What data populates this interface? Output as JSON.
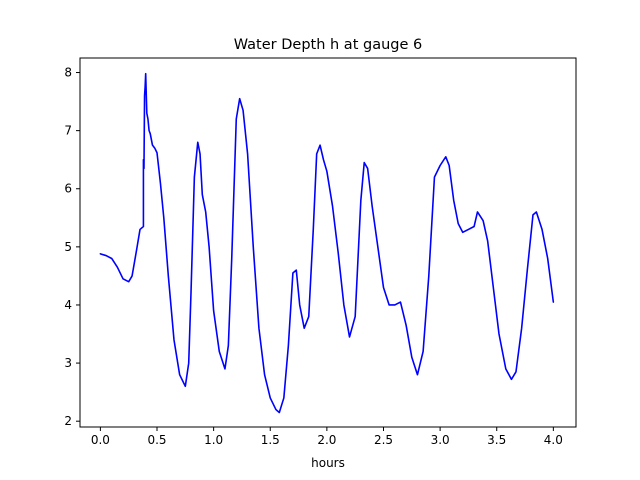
{
  "chart_data": {
    "type": "line",
    "title": "Water Depth h at gauge 6",
    "xlabel": "hours",
    "ylabel": "",
    "xlim": [
      -0.18,
      4.2
    ],
    "ylim": [
      1.9,
      8.25
    ],
    "grid": false,
    "x_ticks": [
      0.0,
      0.5,
      1.0,
      1.5,
      2.0,
      2.5,
      3.0,
      3.5,
      4.0
    ],
    "x_tick_labels": [
      "0.0",
      "0.5",
      "1.0",
      "1.5",
      "2.0",
      "2.5",
      "3.0",
      "3.5",
      "4.0"
    ],
    "y_ticks": [
      2,
      3,
      4,
      5,
      6,
      7,
      8
    ],
    "y_tick_labels": [
      "2",
      "3",
      "4",
      "5",
      "6",
      "7",
      "8"
    ],
    "series": [
      {
        "color": "#0000ff",
        "x": [
          0.0,
          0.05,
          0.1,
          0.15,
          0.2,
          0.25,
          0.28,
          0.32,
          0.35,
          0.38,
          0.38,
          0.385,
          0.39,
          0.395,
          0.4,
          0.41,
          0.42,
          0.43,
          0.44,
          0.46,
          0.48,
          0.5,
          0.53,
          0.56,
          0.6,
          0.65,
          0.7,
          0.75,
          0.78,
          0.8,
          0.83,
          0.86,
          0.88,
          0.9,
          0.93,
          0.96,
          1.0,
          1.05,
          1.1,
          1.13,
          1.16,
          1.2,
          1.23,
          1.26,
          1.3,
          1.35,
          1.4,
          1.45,
          1.5,
          1.55,
          1.58,
          1.62,
          1.66,
          1.7,
          1.73,
          1.76,
          1.8,
          1.84,
          1.88,
          1.91,
          1.94,
          1.97,
          2.0,
          2.05,
          2.1,
          2.15,
          2.2,
          2.25,
          2.3,
          2.33,
          2.36,
          2.4,
          2.45,
          2.5,
          2.55,
          2.6,
          2.65,
          2.7,
          2.75,
          2.8,
          2.85,
          2.9,
          2.95,
          3.0,
          3.05,
          3.08,
          3.12,
          3.16,
          3.2,
          3.25,
          3.3,
          3.33,
          3.38,
          3.42,
          3.47,
          3.52,
          3.58,
          3.63,
          3.67,
          3.72,
          3.77,
          3.82,
          3.85,
          3.9,
          3.95,
          4.0
        ],
        "y": [
          4.88,
          4.85,
          4.8,
          4.65,
          4.45,
          4.4,
          4.5,
          4.95,
          5.3,
          5.35,
          6.5,
          6.35,
          7.6,
          7.75,
          7.98,
          7.3,
          7.2,
          7.0,
          6.95,
          6.75,
          6.7,
          6.62,
          6.1,
          5.5,
          4.5,
          3.4,
          2.8,
          2.6,
          3.0,
          4.2,
          6.2,
          6.8,
          6.6,
          5.9,
          5.6,
          5.0,
          3.9,
          3.2,
          2.9,
          3.3,
          4.8,
          7.2,
          7.55,
          7.35,
          6.6,
          5.0,
          3.6,
          2.8,
          2.4,
          2.2,
          2.15,
          2.4,
          3.3,
          4.55,
          4.6,
          4.0,
          3.6,
          3.8,
          5.3,
          6.6,
          6.75,
          6.5,
          6.3,
          5.7,
          4.9,
          4.0,
          3.45,
          3.8,
          5.8,
          6.45,
          6.35,
          5.7,
          5.0,
          4.3,
          4.0,
          4.0,
          4.05,
          3.65,
          3.1,
          2.8,
          3.2,
          4.5,
          6.2,
          6.4,
          6.55,
          6.4,
          5.8,
          5.4,
          5.25,
          5.3,
          5.35,
          5.6,
          5.45,
          5.1,
          4.3,
          3.5,
          2.9,
          2.72,
          2.85,
          3.6,
          4.6,
          5.55,
          5.6,
          5.3,
          4.8,
          4.05
        ]
      }
    ]
  }
}
